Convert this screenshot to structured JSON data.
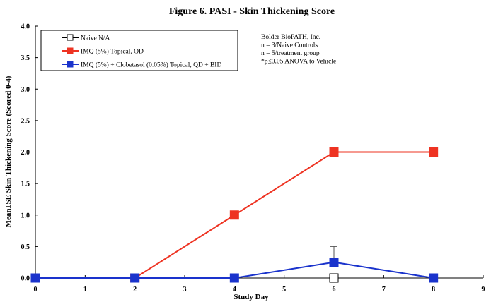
{
  "chart_data": {
    "type": "line",
    "title": "Figure 6. PASI - Skin Thickening Score",
    "xlabel": "Study Day",
    "ylabel": "Mean±SE Skin Thickening Score (Scored 0-4)",
    "xlim": [
      0,
      9
    ],
    "ylim": [
      0,
      4
    ],
    "x_ticks": [
      0,
      1,
      2,
      3,
      4,
      5,
      6,
      7,
      8,
      9
    ],
    "y_ticks": [
      "0.0",
      "0.5",
      "1.0",
      "1.5",
      "2.0",
      "2.5",
      "3.0",
      "3.5",
      "4.0"
    ],
    "grid": false,
    "legend_position": "top-left",
    "series": [
      {
        "name": "Naive N/A",
        "color": "#000000",
        "marker": "open-square",
        "x": [
          6
        ],
        "y": [
          0.0
        ],
        "error": [
          0
        ]
      },
      {
        "name": "IMQ (5%) Topical, QD",
        "color": "#ee3322",
        "marker": "filled-square",
        "x": [
          0,
          2,
          4,
          6,
          8
        ],
        "y": [
          0.0,
          0.0,
          1.0,
          2.0,
          2.0
        ],
        "error": [
          0,
          0,
          0,
          0,
          0
        ]
      },
      {
        "name": "IMQ (5%) + Clobetasol (0.05%) Topical, QD + BID",
        "color": "#1a33cc",
        "marker": "filled-square",
        "x": [
          0,
          2,
          4,
          6,
          8
        ],
        "y": [
          0.0,
          0.0,
          0.0,
          0.25,
          0.0
        ],
        "error": [
          0,
          0,
          0,
          0.25,
          0
        ]
      }
    ],
    "annotations": [
      "Bolder BioPATH, Inc.",
      "n = 3/Naive Controls",
      "n = 5/treatment group",
      "*p≤0.05 ANOVA to Vehicle"
    ]
  }
}
